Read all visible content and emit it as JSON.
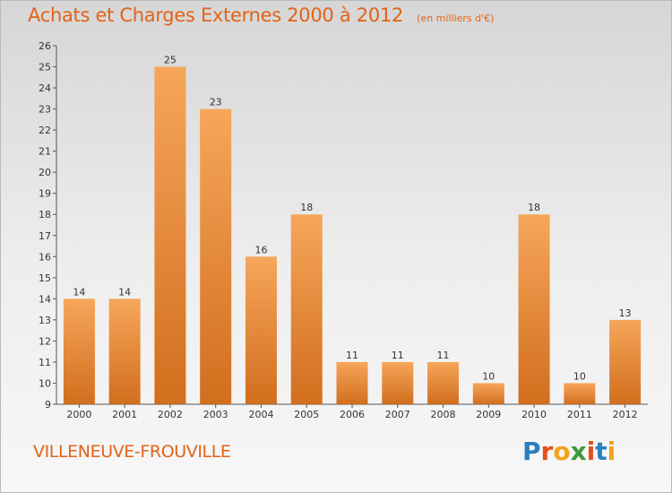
{
  "header": {
    "title": "Achats et Charges Externes 2000 à 2012",
    "subtitle": "(en milliers d'€)"
  },
  "footer": {
    "town": "VILLENEUVE-FROUVILLE",
    "logo_letters": [
      "P",
      "r",
      "o",
      "x",
      "i",
      "t",
      "i"
    ],
    "logo_colors": [
      "#2a7fc1",
      "#e2501b",
      "#f2a31b",
      "#3a9a3a",
      "#e2501b",
      "#2a7fc1",
      "#f2a31b"
    ]
  },
  "colors": {
    "title": "#e26318",
    "bar_light": "#f6a65a",
    "bar_dark": "#d26e1e",
    "axis": "#555555",
    "grid": "#cccccc"
  },
  "chart_data": {
    "type": "bar",
    "title": "Achats et Charges Externes 2000 à 2012",
    "subtitle": "(en milliers d'€)",
    "xlabel": "",
    "ylabel": "",
    "categories": [
      "2000",
      "2001",
      "2002",
      "2003",
      "2004",
      "2005",
      "2006",
      "2007",
      "2008",
      "2009",
      "2010",
      "2011",
      "2012"
    ],
    "values": [
      14,
      14,
      25,
      23,
      16,
      18,
      11,
      11,
      11,
      10,
      18,
      10,
      13
    ],
    "data_labels": [
      "14",
      "14",
      "25",
      "23",
      "16",
      "18",
      "11",
      "11",
      "11",
      "10",
      "18",
      "10",
      "13"
    ],
    "ylim": [
      9,
      26
    ],
    "yticks": [
      "9",
      "10",
      "11",
      "12",
      "13",
      "14",
      "15",
      "16",
      "17",
      "18",
      "19",
      "20",
      "21",
      "22",
      "23",
      "24",
      "25",
      "26"
    ],
    "grid": false,
    "legend": "none"
  }
}
